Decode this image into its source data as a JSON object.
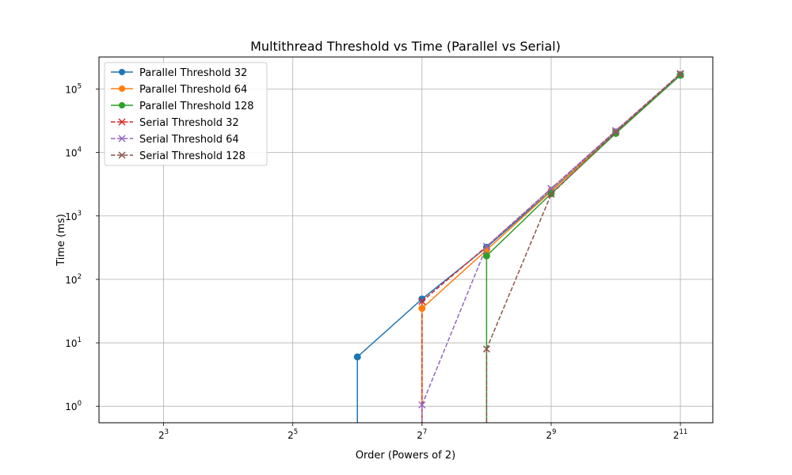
{
  "chart_data": {
    "type": "line",
    "title": "Multithread Threshold vs Time (Parallel vs Serial)",
    "xlabel": "Order (Powers of 2)",
    "ylabel": "Time (ms)",
    "xscale": "log2",
    "yscale": "log10",
    "xlim": [
      4,
      2900
    ],
    "ylim": [
      0.55,
      320000
    ],
    "x_ticks": [
      8,
      32,
      128,
      512,
      2048
    ],
    "x_tick_labels": [
      [
        "2",
        "3"
      ],
      [
        "2",
        "5"
      ],
      [
        "2",
        "7"
      ],
      [
        "2",
        "9"
      ],
      [
        "2",
        "11"
      ]
    ],
    "y_ticks": [
      1,
      10,
      100,
      1000,
      10000,
      100000
    ],
    "y_tick_labels": [
      [
        "10",
        "0"
      ],
      [
        "10",
        "1"
      ],
      [
        "10",
        "2"
      ],
      [
        "10",
        "3"
      ],
      [
        "10",
        "4"
      ],
      [
        "10",
        "5"
      ]
    ],
    "grid": true,
    "legend_position": "top-left",
    "series": [
      {
        "name": "Parallel Threshold 32",
        "color": "#1f77b4",
        "style": "solid",
        "marker": "circle",
        "x": [
          64,
          128,
          256,
          512,
          1024,
          2048
        ],
        "y": [
          6,
          49,
          320,
          2500,
          21000,
          168000
        ]
      },
      {
        "name": "Parallel Threshold 64",
        "color": "#ff7f0e",
        "style": "solid",
        "marker": "circle",
        "x": [
          128,
          256,
          512,
          1024,
          2048
        ],
        "y": [
          35,
          290,
          2450,
          20500,
          167000
        ]
      },
      {
        "name": "Parallel Threshold 128",
        "color": "#2ca02c",
        "style": "solid",
        "marker": "circle",
        "x": [
          256,
          512,
          1024,
          2048
        ],
        "y": [
          235,
          2250,
          20000,
          165000
        ]
      },
      {
        "name": "Serial Threshold 32",
        "color": "#d62728",
        "style": "dashed",
        "marker": "x",
        "x": [
          128,
          256,
          512,
          1024,
          2048
        ],
        "y": [
          45,
          330,
          2700,
          22000,
          175000
        ]
      },
      {
        "name": "Serial Threshold 64",
        "color": "#9467bd",
        "style": "dashed",
        "marker": "x",
        "x": [
          128,
          256,
          512,
          1024,
          2048
        ],
        "y": [
          1.05,
          330,
          2700,
          22000,
          175000
        ]
      },
      {
        "name": "Serial Threshold 128",
        "color": "#8c564b",
        "style": "dashed",
        "marker": "x",
        "x": [
          256,
          512,
          1024,
          2048
        ],
        "y": [
          8,
          2200,
          21000,
          172000
        ]
      }
    ],
    "drop_lines": [
      {
        "series": "Parallel Threshold 32",
        "x": 64
      },
      {
        "series": "Parallel Threshold 64",
        "x": 128
      },
      {
        "series": "Parallel Threshold 128",
        "x": 256
      },
      {
        "series": "Serial Threshold 32",
        "x": 128
      },
      {
        "series": "Serial Threshold 64",
        "x": 128
      },
      {
        "series": "Serial Threshold 128",
        "x": 256
      }
    ]
  }
}
